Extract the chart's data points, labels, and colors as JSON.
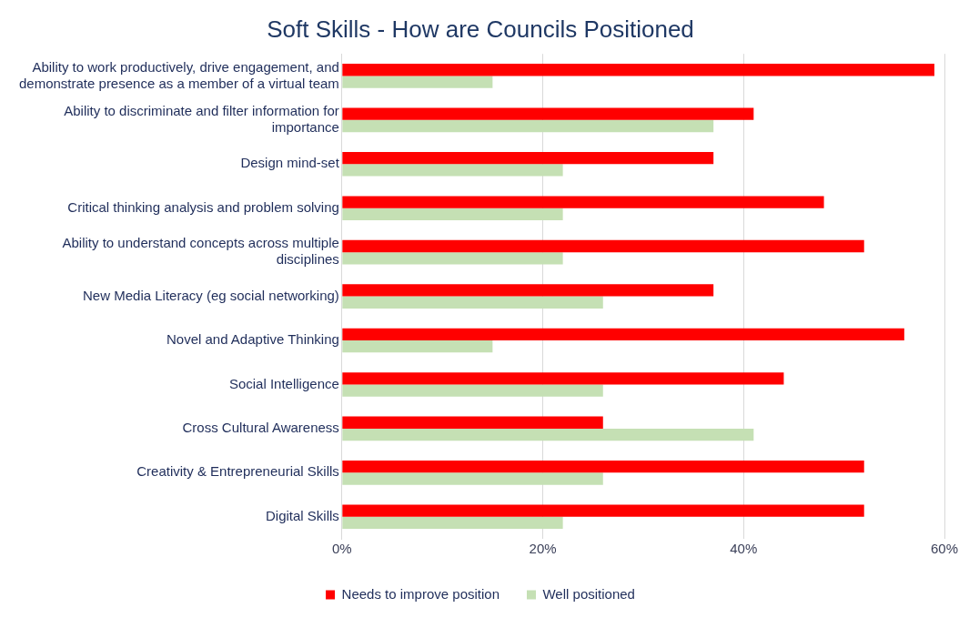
{
  "chart_data": {
    "type": "bar",
    "orientation": "horizontal",
    "title": "Soft Skills - How are Councils Positioned",
    "categories": [
      "Ability to work productively, drive engagement, and demonstrate presence as a member of a virtual team",
      "Ability to discriminate and filter information for importance",
      "Design mind-set",
      "Critical thinking analysis and problem solving",
      "Ability to understand concepts across multiple disciplines",
      "New Media Literacy (eg social networking)",
      "Novel and Adaptive Thinking",
      "Social Intelligence",
      "Cross Cultural Awareness",
      "Creativity & Entrepreneurial Skills",
      "Digital Skills"
    ],
    "series": [
      {
        "name": "Needs to improve position",
        "color": "#ff0000",
        "values": [
          59,
          41,
          37,
          48,
          52,
          37,
          56,
          44,
          26,
          52,
          52
        ]
      },
      {
        "name": "Well positioned",
        "color": "#c5e0b4",
        "values": [
          15,
          37,
          22,
          22,
          22,
          26,
          15,
          26,
          41,
          26,
          22
        ]
      }
    ],
    "xlim": [
      0,
      60
    ],
    "xticks": [
      {
        "value": 0,
        "label": "0%"
      },
      {
        "value": 20,
        "label": "20%"
      },
      {
        "value": 40,
        "label": "40%"
      },
      {
        "value": 60,
        "label": "60%"
      }
    ],
    "grid": "x",
    "legend": "bottom"
  }
}
